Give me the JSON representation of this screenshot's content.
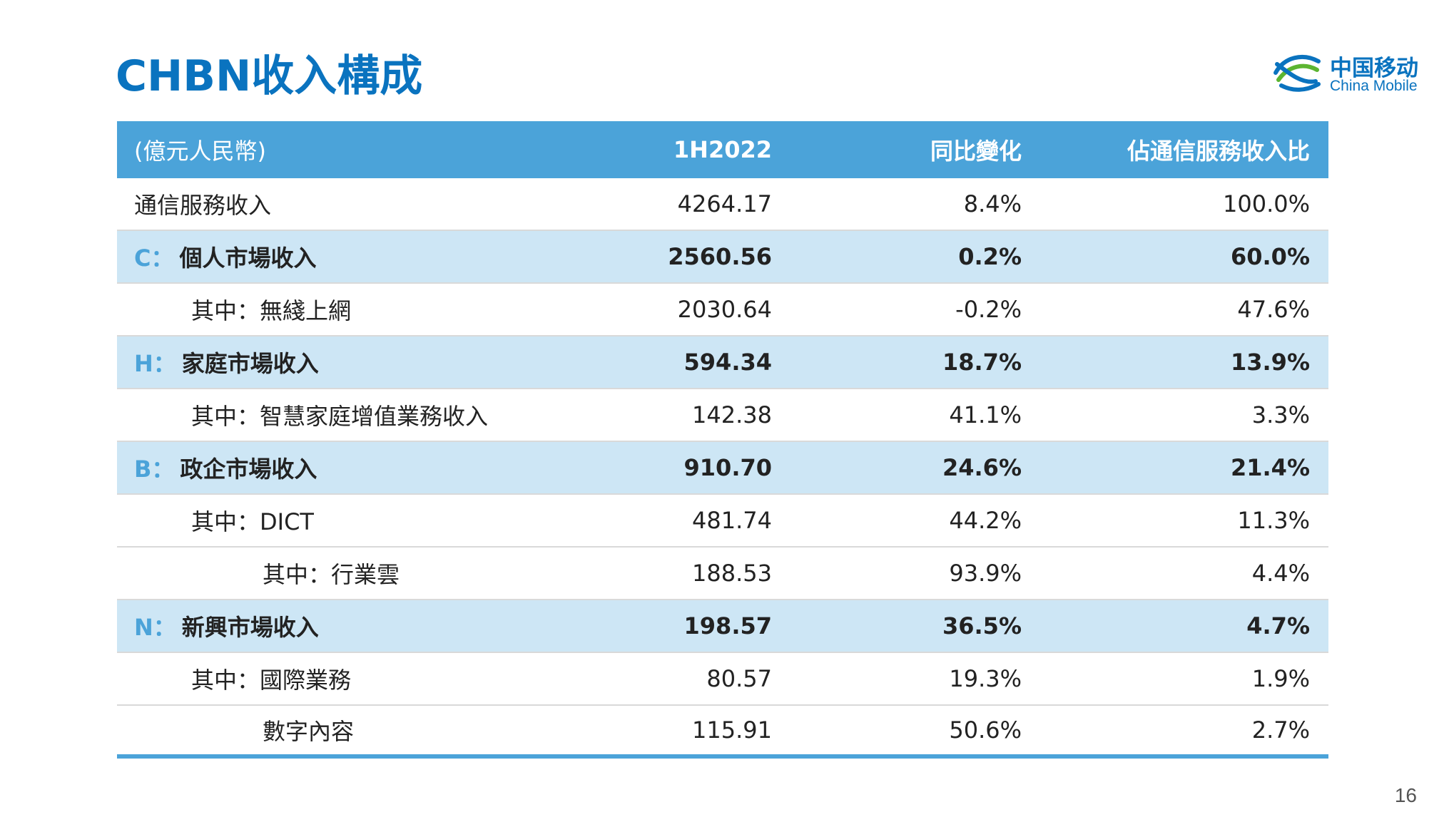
{
  "title": "CHBN收入構成",
  "logo": {
    "cn": "中国移动",
    "en": "China Mobile",
    "icon": "china-mobile-logo-icon",
    "colors": [
      "#0a73bf",
      "#5cb531"
    ]
  },
  "colors": {
    "title": "#0a73bf",
    "header_bg": "#4ba3d9",
    "highlight_bg": "#cde6f5",
    "prefix": "#4ba3d9"
  },
  "table": {
    "headers": [
      "(億元人民幣)",
      "1H2022",
      "同比變化",
      "佔通信服務收入比"
    ],
    "rows": [
      {
        "prefix": "",
        "label": "通信服務收入",
        "v1": "4264.17",
        "v2": "8.4%",
        "v3": "100.0%"
      },
      {
        "prefix": "C：",
        "label": "個人市場收入",
        "v1": "2560.56",
        "v2": "0.2%",
        "v3": "60.0%"
      },
      {
        "prefix": "",
        "label": "其中：無綫上網",
        "v1": "2030.64",
        "v2": "-0.2%",
        "v3": "47.6%"
      },
      {
        "prefix": "H：",
        "label": "家庭市場收入",
        "v1": "594.34",
        "v2": "18.7%",
        "v3": "13.9%"
      },
      {
        "prefix": "",
        "label": "其中：智慧家庭增值業務收入",
        "v1": "142.38",
        "v2": "41.1%",
        "v3": "3.3%"
      },
      {
        "prefix": "B：",
        "label": "政企市場收入",
        "v1": "910.70",
        "v2": "24.6%",
        "v3": "21.4%"
      },
      {
        "prefix": "",
        "label": "其中：DICT",
        "v1": "481.74",
        "v2": "44.2%",
        "v3": "11.3%"
      },
      {
        "prefix": "",
        "label": "其中：行業雲",
        "v1": "188.53",
        "v2": "93.9%",
        "v3": "4.4%"
      },
      {
        "prefix": "N：",
        "label": "新興市場收入",
        "v1": "198.57",
        "v2": "36.5%",
        "v3": "4.7%"
      },
      {
        "prefix": "",
        "label": "其中：國際業務",
        "v1": "80.57",
        "v2": "19.3%",
        "v3": "1.9%"
      },
      {
        "prefix": "",
        "label": "數字內容",
        "v1": "115.91",
        "v2": "50.6%",
        "v3": "2.7%"
      }
    ]
  },
  "page_number": "16"
}
